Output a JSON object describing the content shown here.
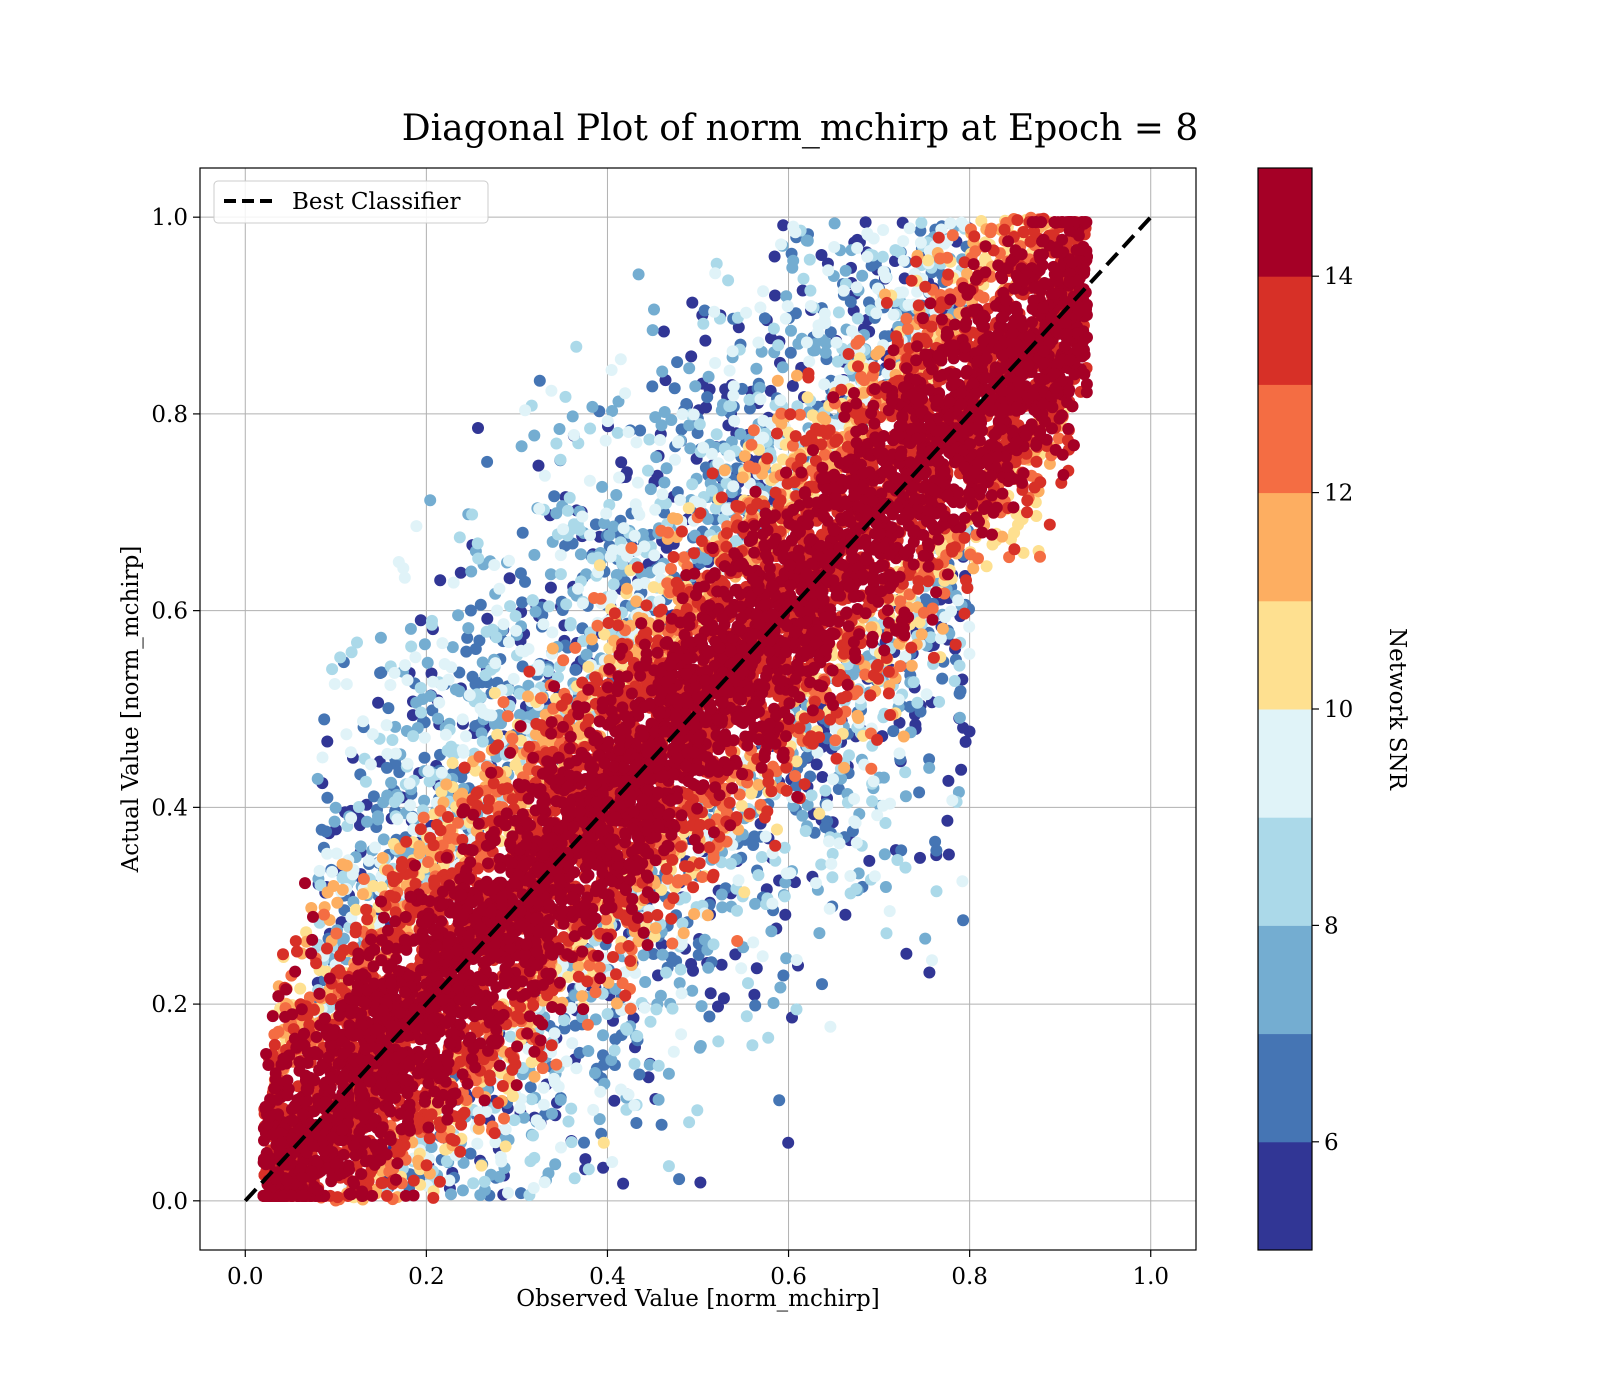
{
  "chart_data": {
    "type": "scatter",
    "title": "Diagonal Plot of norm_mchirp at Epoch = 8",
    "xlabel": "Observed Value [norm_mchirp]",
    "ylabel": "Actual Value [norm_mchirp]",
    "xlim": [
      -0.05,
      1.05
    ],
    "ylim": [
      -0.05,
      1.05
    ],
    "xticks": [
      "0.0",
      "0.2",
      "0.4",
      "0.6",
      "0.8",
      "1.0"
    ],
    "yticks": [
      "0.0",
      "0.2",
      "0.4",
      "0.6",
      "0.8",
      "1.0"
    ],
    "grid": true,
    "legend": {
      "position": "top-left",
      "entries": [
        "Best Classifier"
      ]
    },
    "reference_line": {
      "name": "Best Classifier",
      "x": [
        0.0,
        1.0
      ],
      "y": [
        0.0,
        1.0
      ],
      "style": "dashed",
      "color": "#000000"
    },
    "colorbar": {
      "label": "Network SNR",
      "min": 5,
      "max": 15,
      "ticks": [
        "6",
        "8",
        "10",
        "12",
        "14"
      ],
      "colors": [
        "#313695",
        "#4575b4",
        "#74add1",
        "#abd9e9",
        "#e0f3f8",
        "#fee090",
        "#fdae61",
        "#f46d43",
        "#d73027",
        "#a50026"
      ]
    },
    "density_description": "points scattered around the diagonal; high SNR concentrated along the line, low SNR spread farther away",
    "spread_model": {
      "x_range": [
        0.02,
        0.93
      ],
      "y_range": [
        0.0,
        1.0
      ],
      "snr_range": [
        5,
        15
      ]
    }
  }
}
